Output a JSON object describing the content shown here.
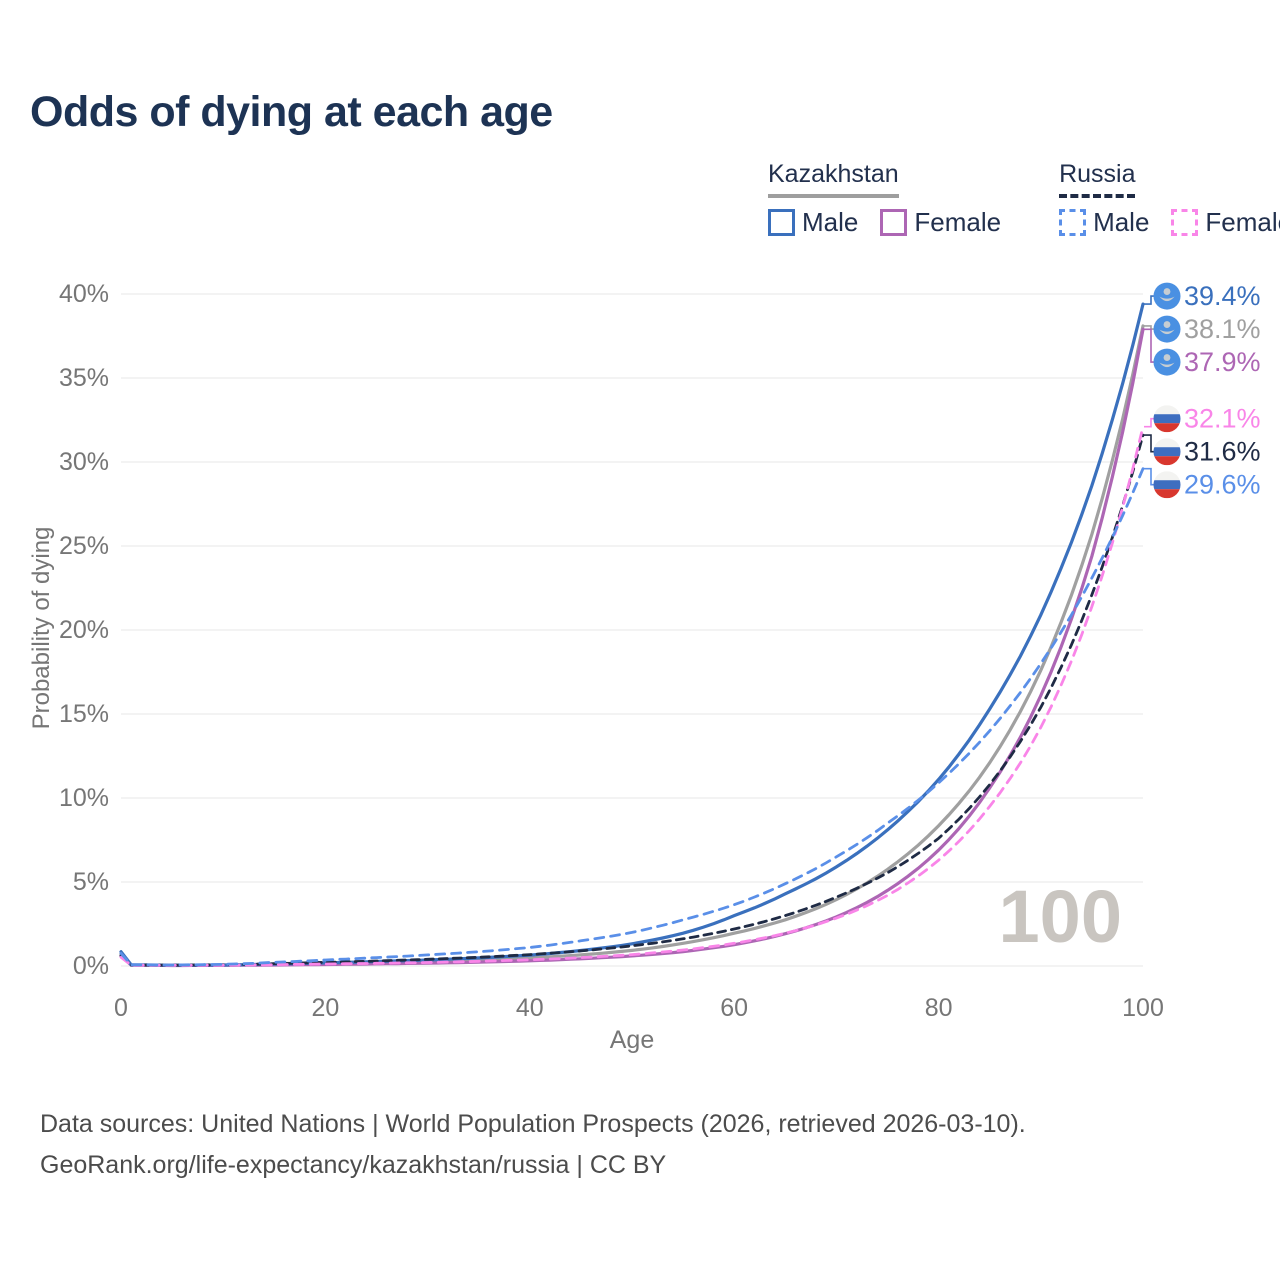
{
  "title": "Odds of dying at each age",
  "watermark": "100",
  "legend": {
    "groups": [
      {
        "country": "Kazakhstan",
        "underline_style": "solid",
        "underline_color": "#9e9e9e",
        "items": [
          {
            "label": "Male",
            "color": "#3a70bd",
            "dashed": false
          },
          {
            "label": "Female",
            "color": "#ad66b4",
            "dashed": false
          }
        ]
      },
      {
        "country": "Russia",
        "underline_style": "dashed",
        "underline_color": "#1f2b45",
        "items": [
          {
            "label": "Male",
            "color": "#5a8fe8",
            "dashed": true
          },
          {
            "label": "Female",
            "color": "#f985e8",
            "dashed": true
          }
        ]
      }
    ]
  },
  "chart_data": {
    "type": "line",
    "title": "Odds of dying at each age",
    "xlabel": "Age",
    "ylabel": "Probability of dying",
    "xlim": [
      0,
      100
    ],
    "ylim_percent": [
      0,
      40
    ],
    "x_ticks": [
      "0",
      "20",
      "40",
      "60",
      "80",
      "100"
    ],
    "y_ticks": [
      "0%",
      "5%",
      "10%",
      "15%",
      "20%",
      "25%",
      "30%",
      "35%",
      "40%"
    ],
    "grid": "horizontal",
    "legend_position": "top-right",
    "ages": [
      0,
      1,
      5,
      10,
      15,
      20,
      25,
      30,
      35,
      40,
      45,
      50,
      55,
      60,
      65,
      70,
      75,
      80,
      85,
      90,
      95,
      100
    ],
    "series": [
      {
        "id": "kz-male",
        "name": "Kazakhstan Male",
        "country": "Kazakhstan",
        "sex": "Male",
        "color": "#3a70bd",
        "dashed": false,
        "flag": "kz",
        "end_label": "39.4%",
        "values": [
          0.85,
          0.07,
          0.05,
          0.06,
          0.12,
          0.19,
          0.27,
          0.36,
          0.48,
          0.65,
          0.92,
          1.32,
          1.95,
          3.0,
          4.3,
          5.9,
          8.1,
          11.1,
          15.3,
          20.9,
          28.6,
          39.4
        ]
      },
      {
        "id": "kz-both",
        "name": "Kazakhstan",
        "country": "Kazakhstan",
        "sex": "Both",
        "color": "#a0a0a0",
        "dashed": false,
        "flag": "kz",
        "end_label": "38.1%",
        "values": [
          0.72,
          0.06,
          0.04,
          0.05,
          0.09,
          0.14,
          0.2,
          0.27,
          0.36,
          0.48,
          0.66,
          0.93,
          1.35,
          1.95,
          2.75,
          3.95,
          5.75,
          8.35,
          12.1,
          17.6,
          25.7,
          38.1
        ]
      },
      {
        "id": "kz-female",
        "name": "Kazakhstan Female",
        "country": "Kazakhstan",
        "sex": "Female",
        "color": "#ad66b4",
        "dashed": false,
        "flag": "kz",
        "end_label": "37.9%",
        "values": [
          0.6,
          0.05,
          0.03,
          0.04,
          0.06,
          0.09,
          0.13,
          0.17,
          0.23,
          0.31,
          0.43,
          0.6,
          0.86,
          1.27,
          1.92,
          2.92,
          4.5,
          6.9,
          10.6,
          16.1,
          24.4,
          37.9
        ]
      },
      {
        "id": "ru-female",
        "name": "Russia Female",
        "country": "Russia",
        "sex": "Female",
        "color": "#f985e8",
        "dashed": true,
        "flag": "ru",
        "end_label": "32.1%",
        "values": [
          0.52,
          0.05,
          0.04,
          0.05,
          0.08,
          0.12,
          0.16,
          0.21,
          0.28,
          0.37,
          0.5,
          0.68,
          0.95,
          1.35,
          1.95,
          2.85,
          4.2,
          6.3,
          9.5,
          14.2,
          21.4,
          32.1
        ]
      },
      {
        "id": "ru-both",
        "name": "Russia",
        "country": "Russia",
        "sex": "Both",
        "color": "#1f2b45",
        "dashed": true,
        "flag": "ru",
        "end_label": "31.6%",
        "values": [
          0.62,
          0.06,
          0.05,
          0.07,
          0.14,
          0.22,
          0.3,
          0.4,
          0.52,
          0.68,
          0.9,
          1.2,
          1.62,
          2.2,
          3.0,
          4.1,
          5.55,
          7.6,
          10.8,
          15.4,
          22.1,
          31.6
        ]
      },
      {
        "id": "ru-male",
        "name": "Russia Male",
        "country": "Russia",
        "sex": "Male",
        "color": "#5a8fe8",
        "dashed": true,
        "flag": "ru",
        "end_label": "29.6%",
        "values": [
          0.75,
          0.07,
          0.06,
          0.1,
          0.22,
          0.36,
          0.5,
          0.66,
          0.85,
          1.1,
          1.5,
          2.0,
          2.75,
          3.65,
          4.9,
          6.5,
          8.5,
          10.9,
          14.0,
          18.0,
          23.1,
          29.6
        ]
      }
    ]
  },
  "footer": {
    "line1": "Data sources: United Nations | World Population Prospects (2026, retrieved 2026-03-10).",
    "line2": "GeoRank.org/life-expectancy/kazakhstan/russia | CC BY"
  },
  "colors": {
    "title_text": "#1d3354",
    "axis_text": "#767676",
    "gridline": "#ececec",
    "watermark": "#c9c5c0",
    "kz_flag_bg": "#4a90e2",
    "kz_flag_glyph": "#c6cdd2",
    "ru_flag_white": "#f3f3f1",
    "ru_flag_blue": "#3e6ec0",
    "ru_flag_red": "#d8372e"
  }
}
